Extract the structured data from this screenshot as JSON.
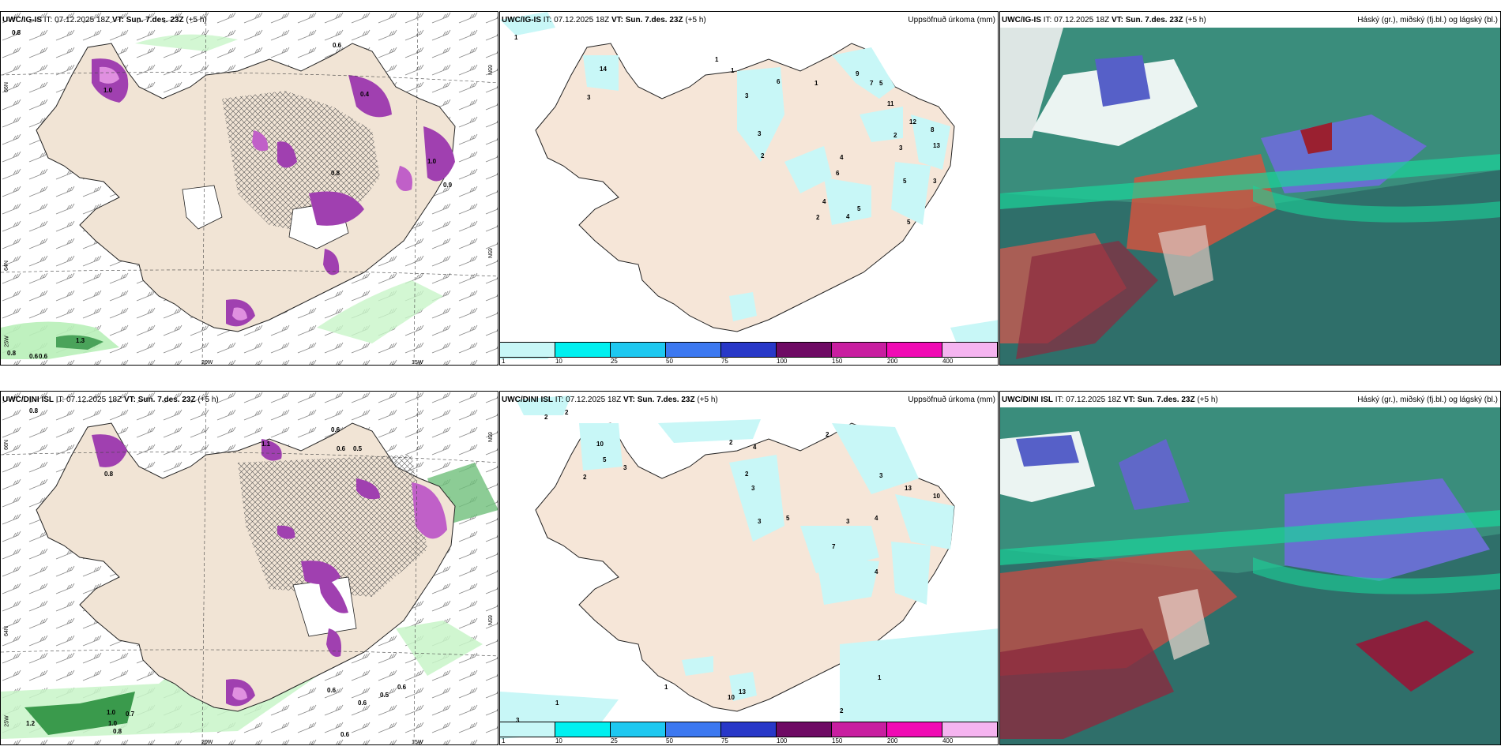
{
  "panels": {
    "top_left": {
      "model": "UWC/IG-IS",
      "it": "IT: 07.12.2025 18Z",
      "vt": "VT: Sun. 7.des. 23Z",
      "lead": "(+5 h)"
    },
    "top_mid": {
      "model": "UWC/IG-IS",
      "it": "IT: 07.12.2025 18Z",
      "vt": "VT: Sun. 7.des. 23Z",
      "lead": "(+5 h)",
      "right": "Uppsöfnuð úrkoma (mm)"
    },
    "top_right": {
      "model": "UWC/IG-IS",
      "it": "IT: 07.12.2025 18Z",
      "vt": "VT: Sun. 7.des. 23Z",
      "lead": "(+5 h)",
      "right": "Háský (gr.), miðský (fj.bl.) og lágský (bl.)"
    },
    "bot_left": {
      "model": "UWC/DINI ISL",
      "it": "IT: 07.12.2025 18Z",
      "vt": "VT: Sun. 7.des. 23Z",
      "lead": "(+5 h)"
    },
    "bot_mid": {
      "model": "UWC/DINI ISL",
      "it": "IT: 07.12.2025 18Z",
      "vt": "VT: Sun. 7.des. 23Z",
      "lead": "(+5 h)",
      "right": "Uppsöfnuð úrkoma (mm)"
    },
    "bot_right": {
      "model": "UWC/DINI ISL",
      "it": "IT: 07.12.2025 18Z",
      "vt": "VT: Sun. 7.des. 23Z",
      "lead": "(+5 h)",
      "right": "Háský (gr.), miðský (fj.bl.) og lágský (bl.)"
    }
  },
  "axis": {
    "lat66": "66N",
    "lat64": "64N",
    "lat65": "65N",
    "lon20": "20W",
    "lon15": "15W",
    "lon25": "25W"
  },
  "legend": {
    "colors": [
      "#c8f7f7",
      "#00f0f0",
      "#1ec8f0",
      "#3c78f0",
      "#2838c8",
      "#6e0a64",
      "#c81ea0",
      "#f00ab4",
      "#f5b4f0"
    ],
    "ticks": [
      "1",
      "10",
      "25",
      "50",
      "75",
      "100",
      "150",
      "200",
      "400"
    ]
  },
  "labels": {
    "tl": [
      "0.8",
      "0.6",
      "0.4",
      "1.3",
      "1.0",
      "0.8",
      "0.6",
      "0.6",
      "1.0",
      "0.9",
      "0.8"
    ],
    "bl": [
      "0.8",
      "0.6",
      "1.1",
      "0.6",
      "0.5",
      "0.8",
      "1.0",
      "0.7",
      "1.2",
      "1.0",
      "0.8",
      "0.6",
      "0.6",
      "0.5",
      "0.6",
      "0.6"
    ],
    "tm": [
      "1",
      "14",
      "3",
      "1",
      "1",
      "3",
      "6",
      "1",
      "9",
      "7",
      "5",
      "11",
      "12",
      "8",
      "13",
      "2",
      "3",
      "4",
      "6",
      "3",
      "2",
      "4",
      "5",
      "4",
      "2",
      "5",
      "3",
      "5"
    ],
    "bm": [
      "2",
      "2",
      "10",
      "5",
      "3",
      "2",
      "2",
      "4",
      "2",
      "3",
      "3",
      "5",
      "7",
      "3",
      "4",
      "13",
      "10",
      "3",
      "2",
      "4",
      "1",
      "1",
      "10",
      "13",
      "3",
      "2",
      "1"
    ]
  }
}
